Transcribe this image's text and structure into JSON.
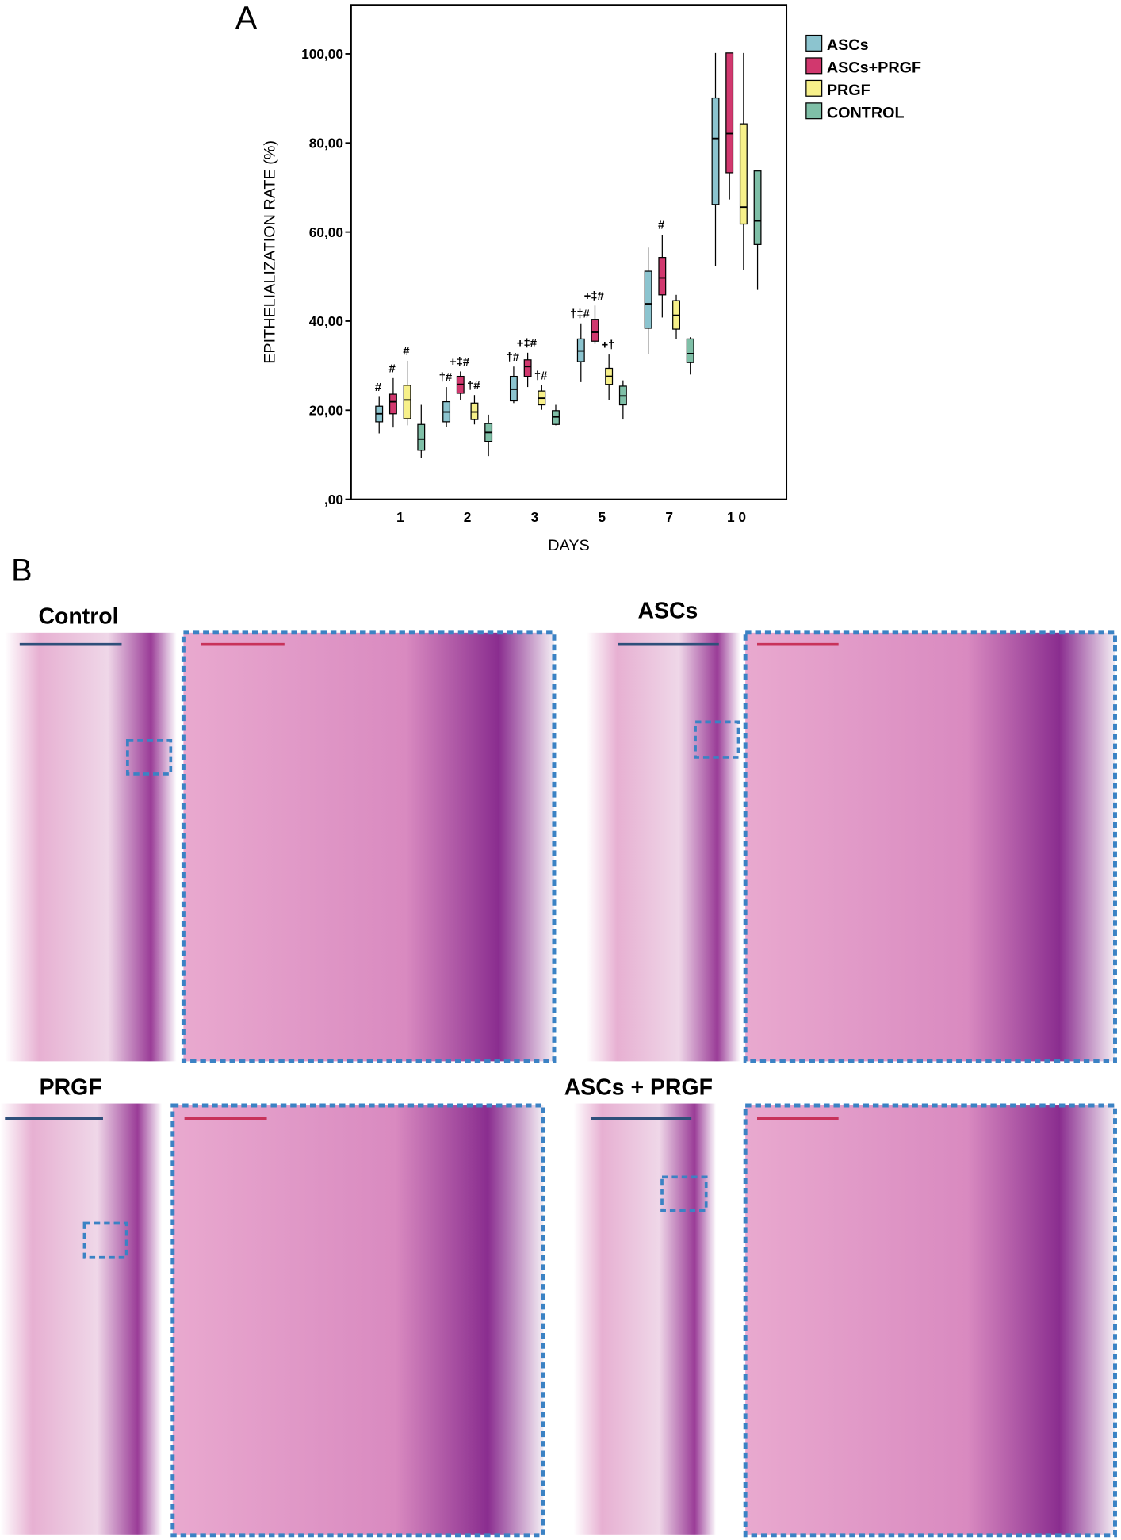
{
  "panel_a_label": "A",
  "chart_data": {
    "type": "box",
    "xlabel": "DAYS",
    "ylabel": "EPITHELIALIZATION RATE (%)",
    "categories": [
      "1",
      "2",
      "3",
      "5",
      "7",
      "1 0"
    ],
    "ylim": [
      0,
      111
    ],
    "yticks": [
      {
        "value": 0,
        "label": ",00"
      },
      {
        "value": 20,
        "label": "20,00"
      },
      {
        "value": 40,
        "label": "40,00"
      },
      {
        "value": 60,
        "label": "60,00"
      },
      {
        "value": 80,
        "label": "80,00"
      },
      {
        "value": 100,
        "label": "100,00"
      }
    ],
    "series": [
      {
        "name": "ASCs",
        "color": "#8cc4cf",
        "values": [
          [
            14.8,
            17.4,
            19.2,
            20.9,
            23.0
          ],
          [
            16.3,
            17.4,
            19.6,
            21.9,
            25.2
          ],
          [
            21.6,
            22.1,
            24.7,
            27.6,
            29.8
          ],
          [
            26.3,
            30.9,
            33.3,
            36.0,
            39.5
          ],
          [
            32.7,
            38.4,
            43.9,
            51.2,
            56.5
          ],
          [
            52.3,
            66.2,
            81.0,
            90.1,
            100.2
          ]
        ],
        "annotations": [
          "#",
          "†#",
          "†#",
          "†‡#",
          null,
          null
        ]
      },
      {
        "name": "ASCs+PRGF",
        "color": "#d1386e",
        "values": [
          [
            16.1,
            19.2,
            21.9,
            23.6,
            27.2
          ],
          [
            22.3,
            23.8,
            25.8,
            27.6,
            28.7
          ],
          [
            25.2,
            27.6,
            29.8,
            31.3,
            32.9
          ],
          [
            34.9,
            35.5,
            37.5,
            40.4,
            43.5
          ],
          [
            40.8,
            45.9,
            49.7,
            54.3,
            59.4
          ],
          [
            67.3,
            73.3,
            82.1,
            100.2,
            100.2
          ]
        ],
        "annotations": [
          "#",
          "+‡#",
          "+‡#",
          "+‡#",
          "#",
          null
        ]
      },
      {
        "name": "PRGF",
        "color": "#f7f08a",
        "values": [
          [
            16.6,
            18.1,
            22.3,
            25.6,
            31.1
          ],
          [
            16.8,
            17.9,
            19.6,
            21.6,
            23.4
          ],
          [
            20.1,
            21.2,
            22.7,
            24.3,
            25.6
          ],
          [
            22.3,
            25.8,
            27.6,
            29.4,
            32.5
          ],
          [
            36.0,
            38.2,
            41.3,
            44.6,
            45.9
          ],
          [
            51.4,
            61.8,
            65.6,
            84.3,
            100.2
          ]
        ],
        "annotations": [
          "#",
          "†#",
          "†#",
          "+†",
          null,
          null
        ]
      },
      {
        "name": "CONTROL",
        "color": "#7fbfa7",
        "values": [
          [
            9.3,
            11.0,
            13.5,
            16.8,
            21.2
          ],
          [
            9.7,
            13.0,
            15.0,
            17.0,
            19.0
          ],
          [
            16.6,
            16.8,
            18.5,
            19.9,
            21.2
          ],
          [
            17.9,
            21.2,
            23.2,
            25.4,
            26.7
          ],
          [
            28.0,
            30.7,
            32.7,
            36.0,
            36.4
          ],
          [
            47.0,
            57.2,
            62.5,
            73.7,
            73.7
          ]
        ],
        "annotations": [
          null,
          null,
          null,
          null,
          null,
          null
        ]
      }
    ]
  },
  "panel_b": {
    "label": "B",
    "panels": [
      {
        "title": "Control"
      },
      {
        "title": "ASCs"
      },
      {
        "title": "PRGF"
      },
      {
        "title": "ASCs + PRGF"
      }
    ]
  }
}
